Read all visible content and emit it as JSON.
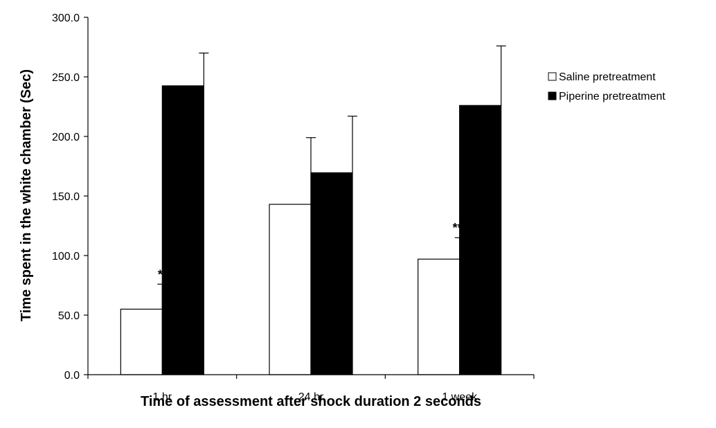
{
  "chart_data": {
    "type": "bar",
    "categories": [
      "1 hr",
      "24 hr",
      "1 week"
    ],
    "series": [
      {
        "name": "Saline pretreatment",
        "values": [
          55.0,
          143.0,
          97.0
        ],
        "errors": [
          21.0,
          56.0,
          18.0
        ],
        "annotations": [
          "*",
          "",
          "**"
        ],
        "fill": "#ffffff",
        "stroke": "#000000"
      },
      {
        "name": "Piperine pretreatment",
        "values": [
          242.5,
          169.5,
          226.0
        ],
        "errors": [
          27.5,
          47.5,
          50.0
        ],
        "annotations": [
          "",
          "",
          ""
        ],
        "fill": "#000000",
        "stroke": "#000000"
      }
    ],
    "xlabel": "Time of assessment after shock duration 2 seconds",
    "ylabel": "Time spent in the white chamber (Sec)",
    "ylim": [
      0,
      300
    ],
    "yticks": [
      "0.0",
      "50.0",
      "100.0",
      "150.0",
      "200.0",
      "250.0",
      "300.0"
    ],
    "grid": false,
    "legend_position": "right"
  }
}
